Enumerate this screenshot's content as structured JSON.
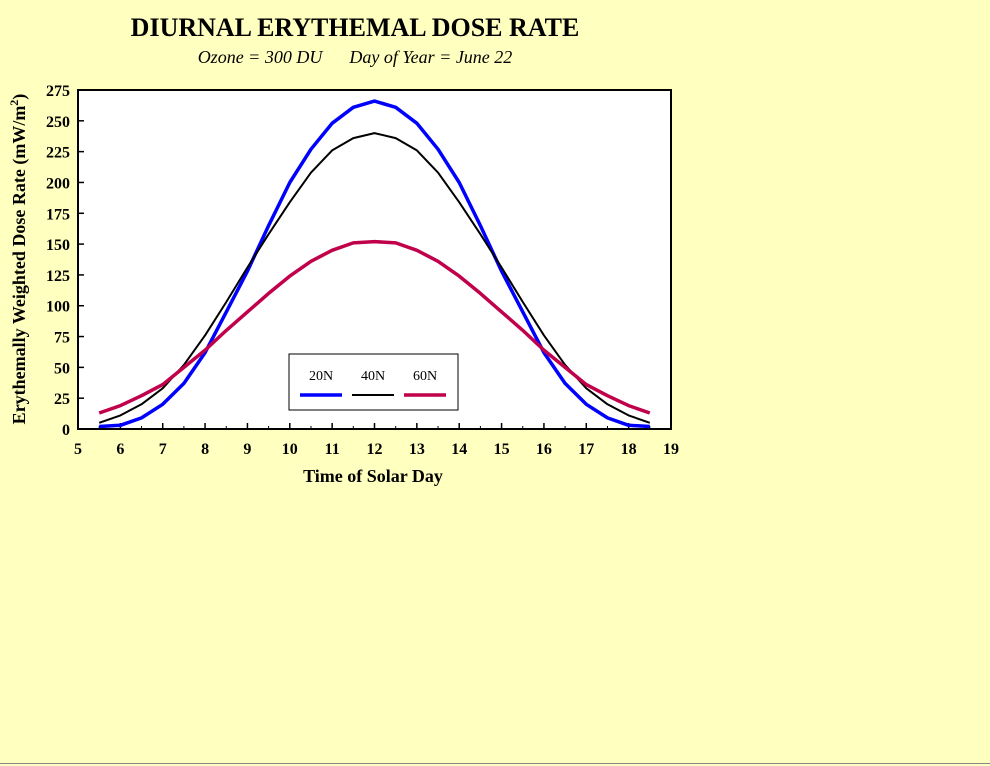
{
  "chart_data": {
    "type": "line",
    "title": "DIURNAL ERYTHEMAL DOSE RATE",
    "subtitle": "Ozone = 300 DU      Day of Year = June 22",
    "xlabel": "Time of Solar Day",
    "ylabel": "Erythemally Weighted Dose Rate (mW/m",
    "ylabel_superscript": "2",
    "ylabel_suffix": ")",
    "xlim": [
      5,
      19
    ],
    "ylim": [
      0,
      275
    ],
    "xticks": [
      "5",
      "6",
      "7",
      "8",
      "9",
      "10",
      "11",
      "12",
      "13",
      "14",
      "15",
      "16",
      "17",
      "18",
      "19"
    ],
    "yticks": [
      "0",
      "25",
      "50",
      "75",
      "100",
      "125",
      "150",
      "175",
      "200",
      "225",
      "250",
      "275"
    ],
    "grid": false,
    "legend_position": "bottom-center",
    "x": [
      5.5,
      6,
      6.5,
      7,
      7.5,
      8,
      8.5,
      9,
      9.5,
      10,
      10.5,
      11,
      11.5,
      12,
      12.5,
      13,
      13.5,
      14,
      14.5,
      15,
      15.5,
      16,
      16.5,
      17,
      17.5,
      18,
      18.5
    ],
    "series": [
      {
        "name": "20N",
        "color": "#0000ff",
        "values": [
          2,
          3,
          9,
          20,
          37,
          62,
          95,
          128,
          165,
          200,
          227,
          248,
          261,
          266,
          261,
          248,
          227,
          200,
          165,
          128,
          95,
          62,
          37,
          20,
          9,
          3,
          2
        ]
      },
      {
        "name": "40N",
        "color": "#000000",
        "values": [
          5,
          11,
          20,
          33,
          52,
          76,
          103,
          131,
          158,
          184,
          208,
          226,
          236,
          240,
          236,
          226,
          208,
          184,
          158,
          131,
          103,
          76,
          52,
          33,
          20,
          11,
          5
        ]
      },
      {
        "name": "60N",
        "color": "#c0004b",
        "values": [
          13,
          19,
          27,
          36,
          50,
          64,
          80,
          95,
          110,
          124,
          136,
          145,
          151,
          152,
          151,
          145,
          136,
          124,
          110,
          95,
          80,
          64,
          50,
          36,
          27,
          19,
          13
        ]
      }
    ]
  }
}
